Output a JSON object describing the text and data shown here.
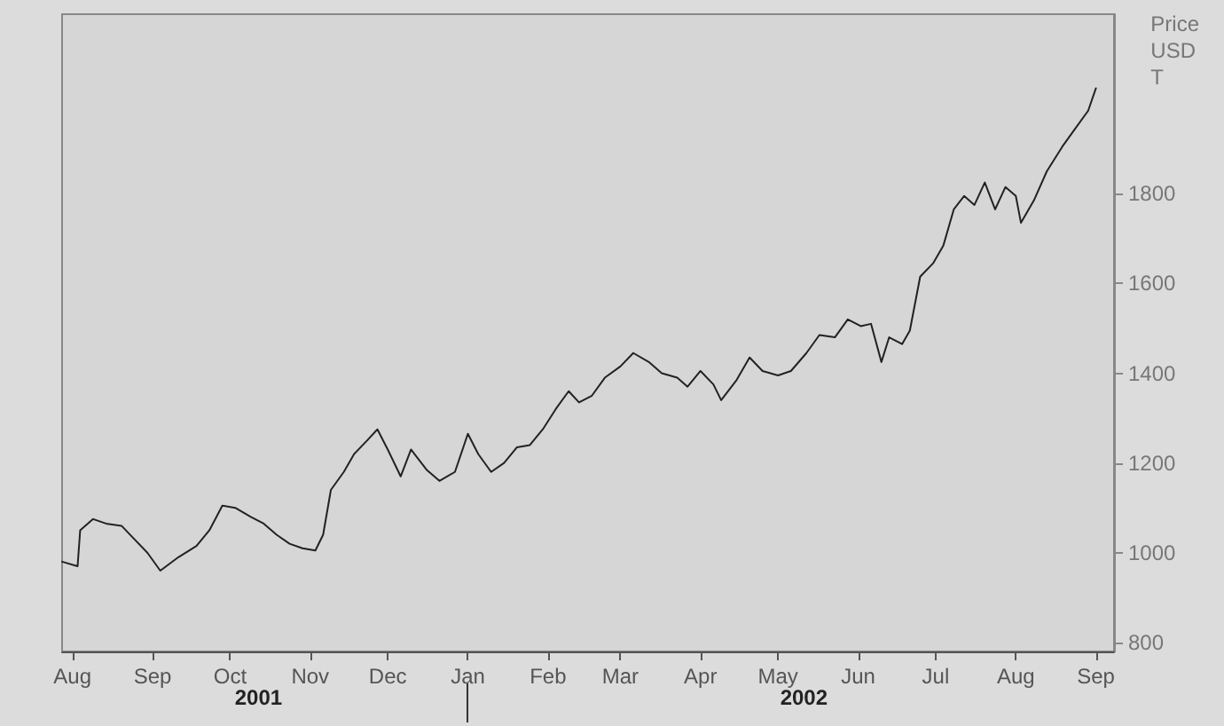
{
  "chart_data": {
    "type": "line",
    "ylabel": "Price USD T",
    "x": [
      "2001-07-28",
      "2001-08-03",
      "2001-08-04",
      "2001-08-09",
      "2001-08-14",
      "2001-08-20",
      "2001-08-25",
      "2001-08-30",
      "2001-09-04",
      "2001-09-11",
      "2001-09-18",
      "2001-09-23",
      "2001-09-28",
      "2001-10-03",
      "2001-10-09",
      "2001-10-14",
      "2001-10-19",
      "2001-10-24",
      "2001-10-29",
      "2001-11-03",
      "2001-11-06",
      "2001-11-09",
      "2001-11-14",
      "2001-11-18",
      "2001-11-23",
      "2001-11-27",
      "2001-12-01",
      "2001-12-06",
      "2001-12-10",
      "2001-12-16",
      "2001-12-21",
      "2001-12-27",
      "2002-01-01",
      "2002-01-05",
      "2002-01-10",
      "2002-01-15",
      "2002-01-20",
      "2002-01-25",
      "2002-01-30",
      "2002-02-04",
      "2002-02-09",
      "2002-02-13",
      "2002-02-18",
      "2002-02-23",
      "2002-03-01",
      "2002-03-06",
      "2002-03-12",
      "2002-03-17",
      "2002-03-23",
      "2002-03-27",
      "2002-04-01",
      "2002-04-06",
      "2002-04-09",
      "2002-04-15",
      "2002-04-20",
      "2002-04-25",
      "2002-05-01",
      "2002-05-06",
      "2002-05-12",
      "2002-05-17",
      "2002-05-23",
      "2002-05-28",
      "2002-06-02",
      "2002-06-06",
      "2002-06-10",
      "2002-06-13",
      "2002-06-18",
      "2002-06-21",
      "2002-06-25",
      "2002-06-30",
      "2002-07-04",
      "2002-07-08",
      "2002-07-12",
      "2002-07-16",
      "2002-07-20",
      "2002-07-24",
      "2002-07-28",
      "2002-08-01",
      "2002-08-03",
      "2002-08-08",
      "2002-08-13",
      "2002-08-19",
      "2002-08-24",
      "2002-08-29",
      "2002-09-01"
    ],
    "series": [
      {
        "color": "#222222",
        "values": [
          980,
          970,
          1050,
          1075,
          1065,
          1060,
          1030,
          1000,
          960,
          990,
          1015,
          1050,
          1105,
          1100,
          1080,
          1065,
          1040,
          1020,
          1010,
          1005,
          1040,
          1140,
          1180,
          1220,
          1250,
          1275,
          1230,
          1170,
          1230,
          1185,
          1160,
          1180,
          1265,
          1220,
          1180,
          1200,
          1235,
          1240,
          1275,
          1320,
          1360,
          1335,
          1350,
          1390,
          1415,
          1445,
          1425,
          1400,
          1390,
          1370,
          1405,
          1375,
          1340,
          1385,
          1435,
          1405,
          1395,
          1405,
          1445,
          1485,
          1480,
          1520,
          1505,
          1510,
          1425,
          1480,
          1465,
          1495,
          1615,
          1645,
          1685,
          1765,
          1795,
          1775,
          1825,
          1765,
          1815,
          1795,
          1735,
          1785,
          1850,
          1905,
          1945,
          1985,
          2035
        ]
      }
    ],
    "xlim": [
      "2001-07-28",
      "2002-09-08"
    ],
    "xticks": [
      {
        "value": "2001-08-01",
        "label": "Aug"
      },
      {
        "value": "2001-09-01",
        "label": "Sep"
      },
      {
        "value": "2001-10-01",
        "label": "Oct"
      },
      {
        "value": "2001-11-01",
        "label": "Nov"
      },
      {
        "value": "2001-12-01",
        "label": "Dec"
      },
      {
        "value": "2002-01-01",
        "label": "Jan"
      },
      {
        "value": "2002-02-01",
        "label": "Feb"
      },
      {
        "value": "2002-03-01",
        "label": "Mar"
      },
      {
        "value": "2002-04-01",
        "label": "Apr"
      },
      {
        "value": "2002-05-01",
        "label": "May"
      },
      {
        "value": "2002-06-01",
        "label": "Jun"
      },
      {
        "value": "2002-07-01",
        "label": "Jul"
      },
      {
        "value": "2002-08-01",
        "label": "Aug"
      },
      {
        "value": "2002-09-01",
        "label": "Sep"
      }
    ],
    "x2lim": [
      "2001-07-28",
      "2002-09-08"
    ],
    "x2ticks": [
      {
        "value": "2001-10-12",
        "label": "2001"
      },
      {
        "value": "2002-01-01",
        "label": null
      },
      {
        "value": "2002-05-11",
        "label": "2002"
      }
    ],
    "ylim": [
      780,
      2200
    ],
    "yticks": [
      800,
      1000,
      1200,
      1400,
      1600,
      1800
    ],
    "grid": false,
    "marker": "none",
    "line_style": "solid"
  }
}
